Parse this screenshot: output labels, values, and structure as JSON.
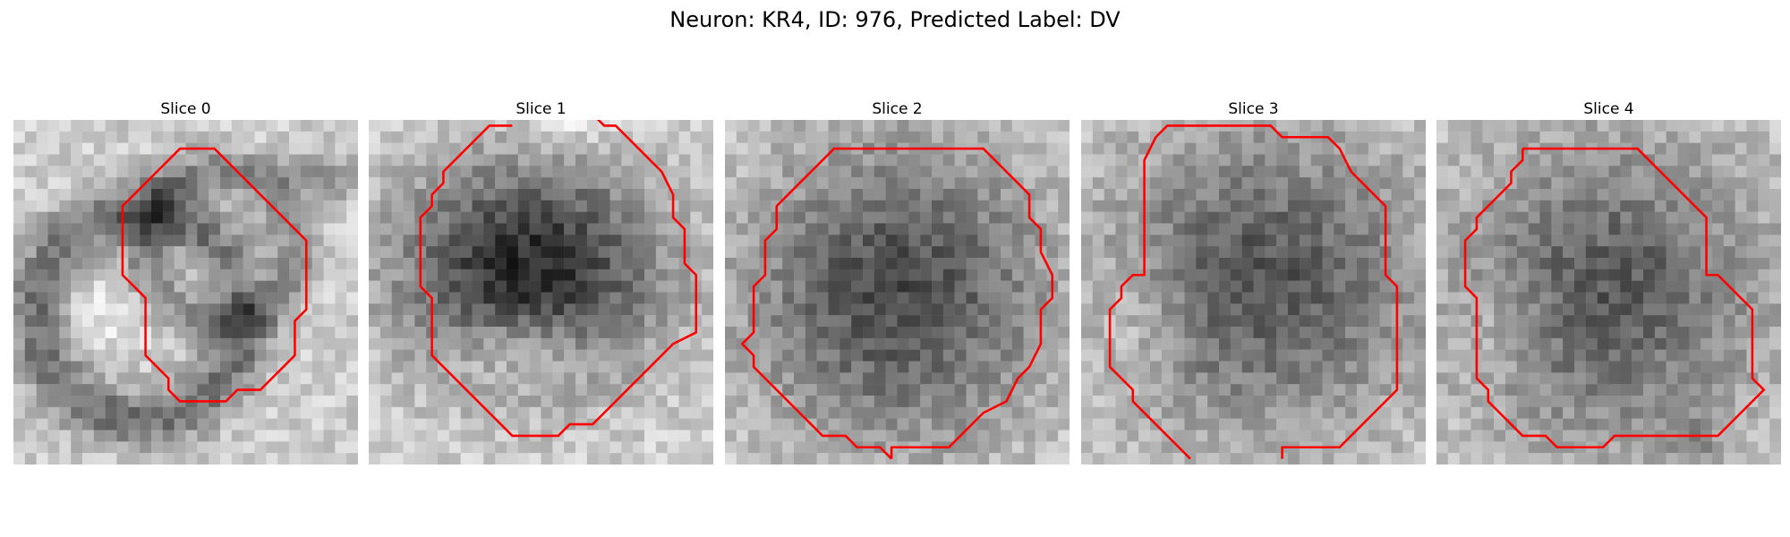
{
  "figure": {
    "suptitle": "Neuron: KR4, ID: 976, Predicted Label: DV"
  },
  "panels": [
    {
      "title": "Slice 0"
    },
    {
      "title": "Slice 1"
    },
    {
      "title": "Slice 2"
    },
    {
      "title": "Slice 3"
    },
    {
      "title": "Slice 4"
    }
  ],
  "style": {
    "contour_color": "#ff0000",
    "colormap": "grayscale"
  }
}
